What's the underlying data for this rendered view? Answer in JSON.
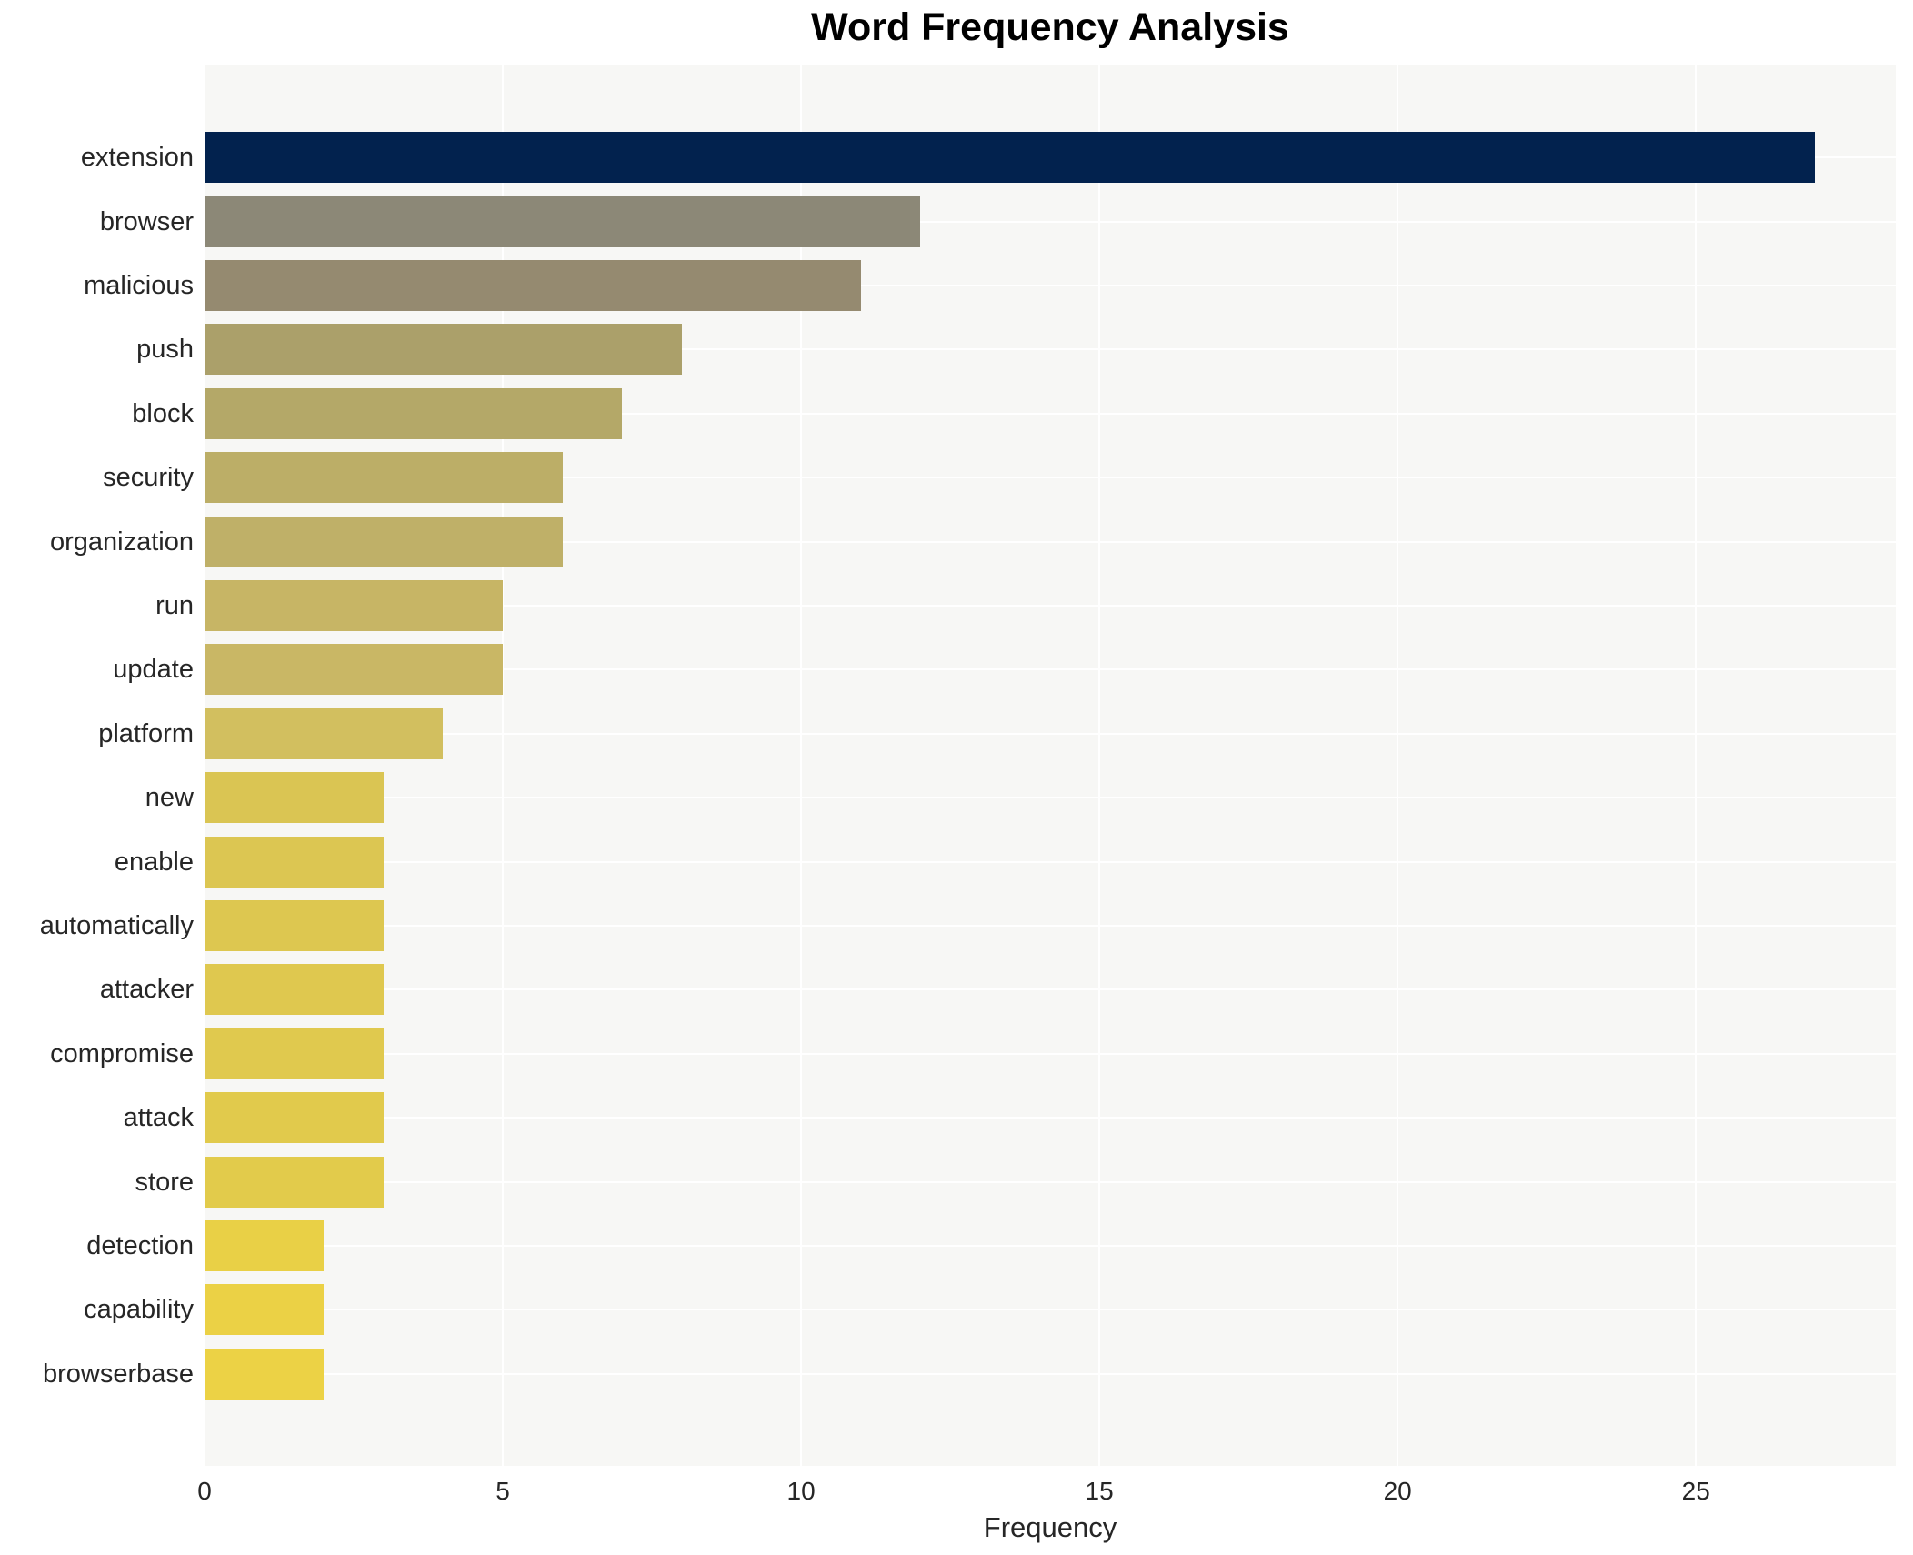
{
  "chart_data": {
    "type": "bar",
    "orientation": "horizontal",
    "title": "Word Frequency Analysis",
    "xlabel": "Frequency",
    "ylabel": "",
    "categories": [
      "extension",
      "browser",
      "malicious",
      "push",
      "block",
      "security",
      "organization",
      "run",
      "update",
      "platform",
      "new",
      "enable",
      "automatically",
      "attacker",
      "compromise",
      "attack",
      "store",
      "detection",
      "capability",
      "browserbase"
    ],
    "values": [
      27,
      12,
      11,
      8,
      7,
      6,
      6,
      5,
      5,
      4,
      3,
      3,
      3,
      3,
      3,
      3,
      3,
      2,
      2,
      2
    ],
    "bar_colors": [
      "#02224e",
      "#8c8877",
      "#958a70",
      "#aba06a",
      "#b4a868",
      "#bcae67",
      "#bfb068",
      "#c7b565",
      "#c9b765",
      "#d2bf5f",
      "#dac553",
      "#dcc652",
      "#ddc750",
      "#dfc84f",
      "#e0c94e",
      "#e1ca4c",
      "#e2cb4b",
      "#e9d046",
      "#ebd145",
      "#ecd245"
    ],
    "xlim": [
      0,
      28.35
    ],
    "xticks": [
      0,
      5,
      10,
      15,
      20,
      25
    ],
    "legend": "none",
    "grid": "on",
    "colormap": "cividis",
    "plot_bg_color": "#f7f7f5",
    "grid_color": "#ffffff",
    "text_color": "#262626",
    "title_color": "#000000"
  }
}
